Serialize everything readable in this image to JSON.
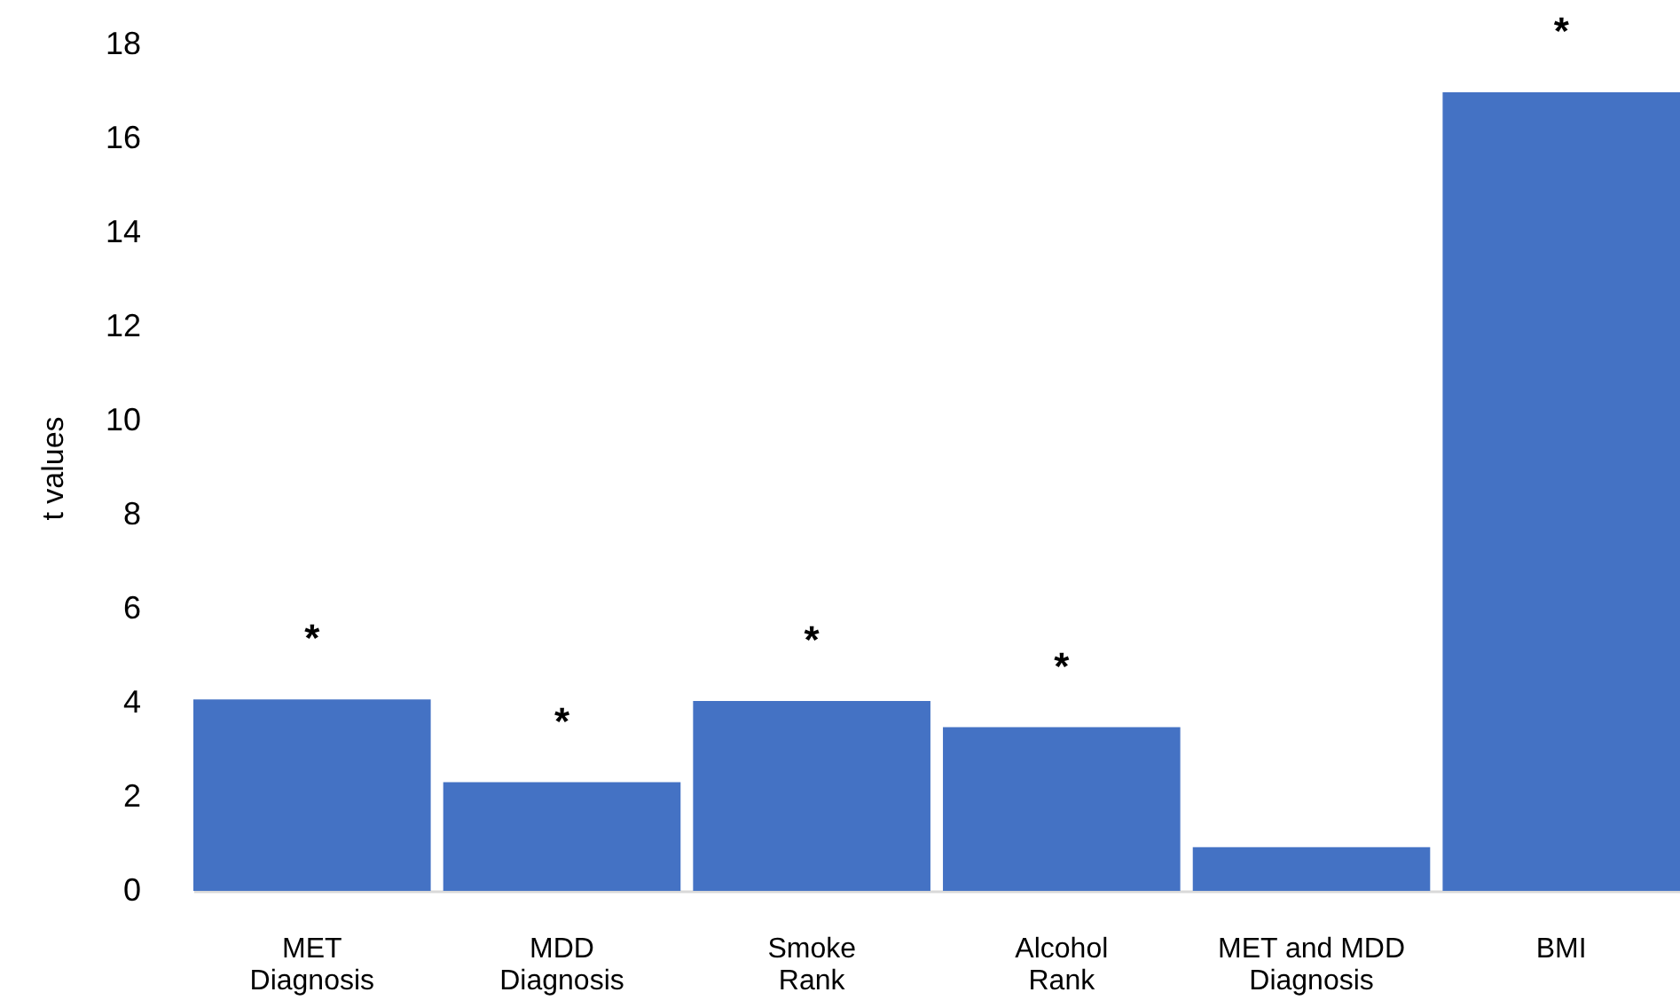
{
  "chart_data": {
    "type": "bar",
    "ylabel": "t values",
    "categories": [
      "MET Diagnosis",
      "MDD Diagnosis",
      "Smoke Rank",
      "Alcohol Rank",
      "MET and MDD Diagnosis",
      "BMI"
    ],
    "values": [
      4.07,
      2.31,
      4.04,
      3.48,
      0.93,
      16.98
    ],
    "color": "#4472c4",
    "ylim": [
      0,
      18
    ],
    "yticks": [
      0,
      2,
      4,
      6,
      8,
      10,
      12,
      14,
      16,
      18
    ],
    "grid": false,
    "annotations": [
      {
        "text": "*",
        "x": "MET Diagnosis",
        "y": 4.07
      },
      {
        "text": "*",
        "x": "MDD Diagnosis",
        "y": 2.31
      },
      {
        "text": "*",
        "x": "Smoke Rank",
        "y": 4.04
      },
      {
        "text": "*",
        "x": "Alcohol Rank",
        "y": 3.48
      },
      {
        "text": "*",
        "x": "BMI",
        "y": 16.98
      }
    ]
  }
}
